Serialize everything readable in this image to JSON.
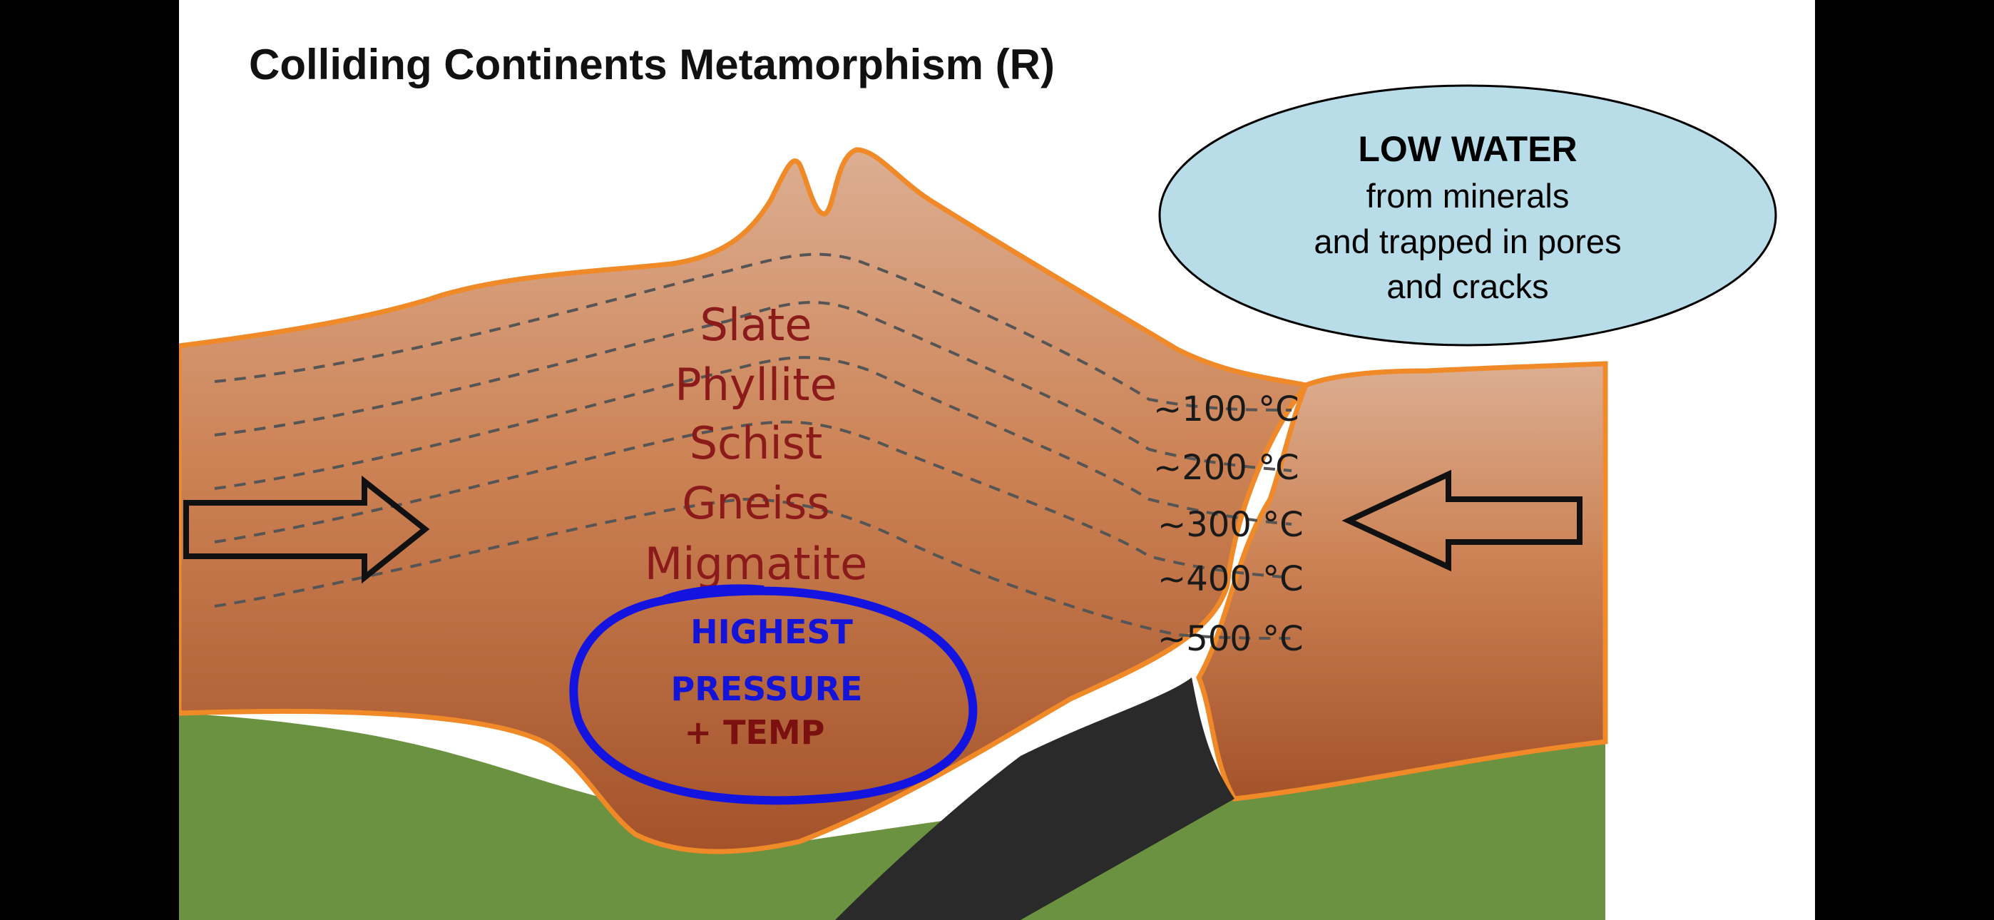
{
  "title": "Colliding Continents Metamorphism (R)",
  "water_note": {
    "heading": "LOW WATER",
    "lines": [
      "from minerals",
      "and trapped in pores",
      "and cracks"
    ]
  },
  "rock_sequence": [
    "Slate",
    "Phyllite",
    "Schist",
    "Gneiss",
    "Migmatite"
  ],
  "isotherms": [
    "~100 °C",
    "~200 °C",
    "~300 °C",
    "~400 °C",
    "~500 °C"
  ],
  "annotation": {
    "line1": "HIGHEST",
    "line2": "PRESSURE",
    "line3": "+ TEMP"
  },
  "colors": {
    "crust_top": "#dba98b",
    "crust_bottom": "#a9552a",
    "crust_outline": "#f08a28",
    "mantle": "#6a9240",
    "slab": "#2a2a2a",
    "water_bubble": "#b9dde8",
    "rock_text": "#8b1a1a",
    "annotation_blue": "#1414d8"
  },
  "icons": [
    "right-arrow-icon",
    "left-arrow-icon"
  ]
}
